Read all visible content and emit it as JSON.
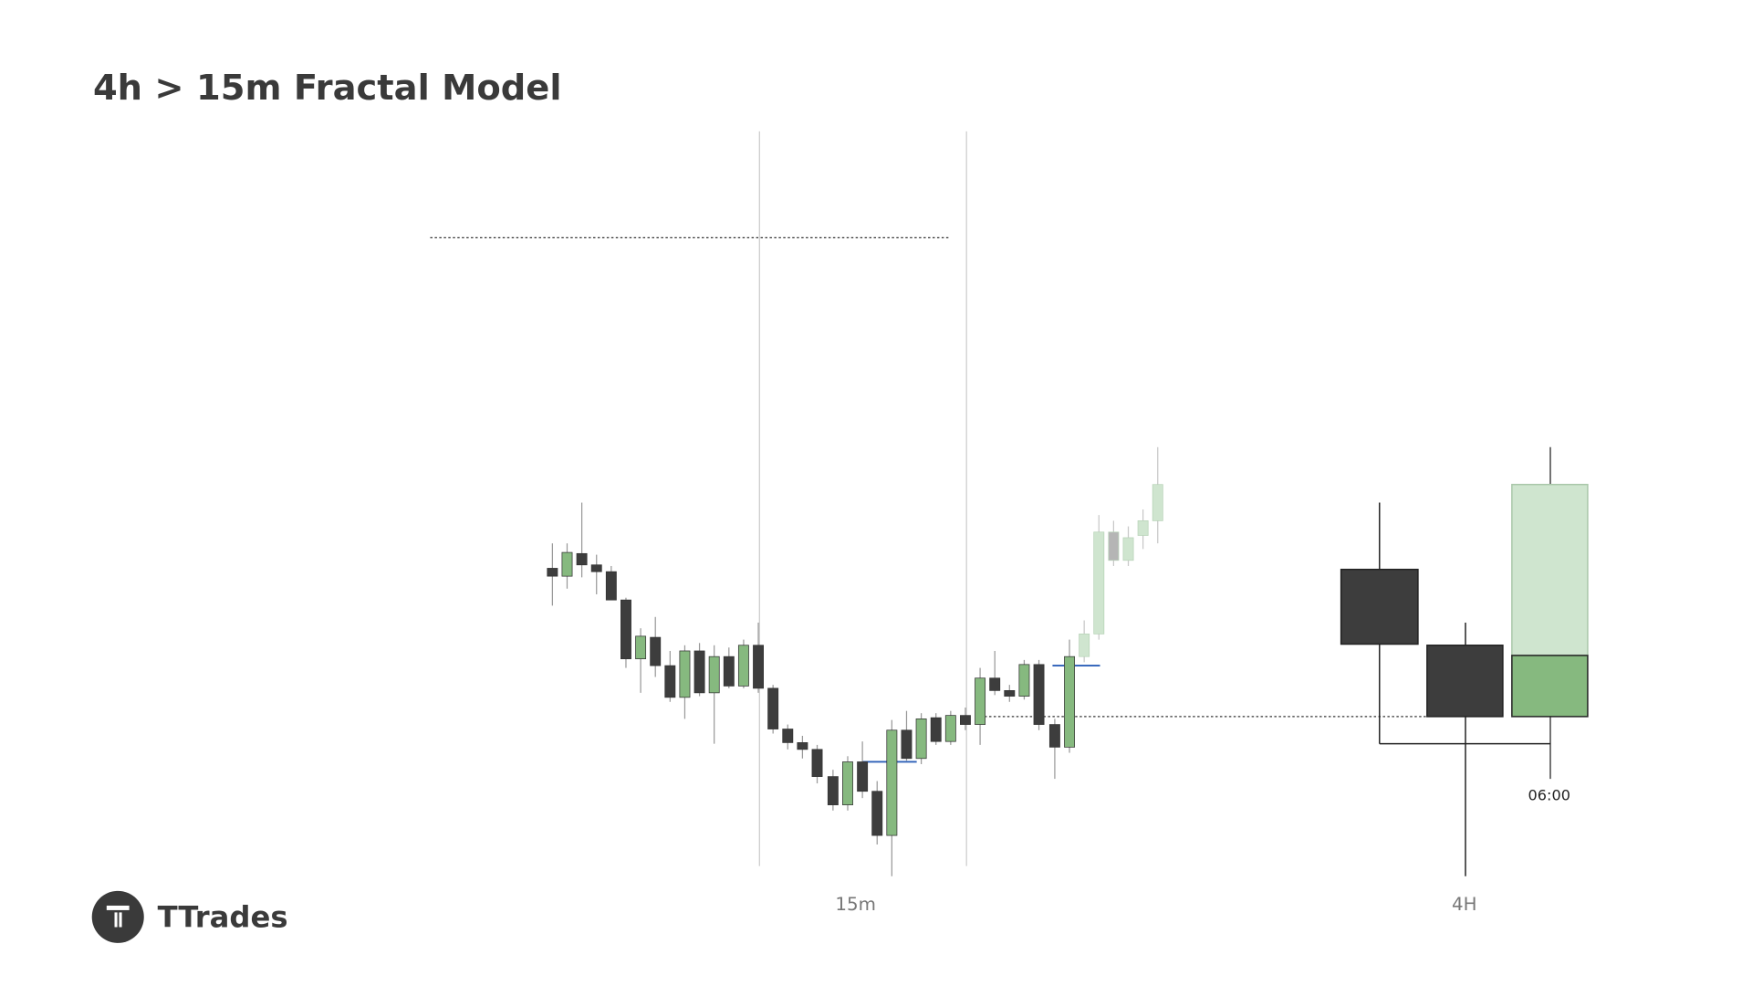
{
  "header": {
    "title": "4h > 15m Fractal Model"
  },
  "labels": {
    "ltf": "15m",
    "htf": "4H",
    "time": "06:00"
  },
  "brand": {
    "name": "TTrades"
  }
}
